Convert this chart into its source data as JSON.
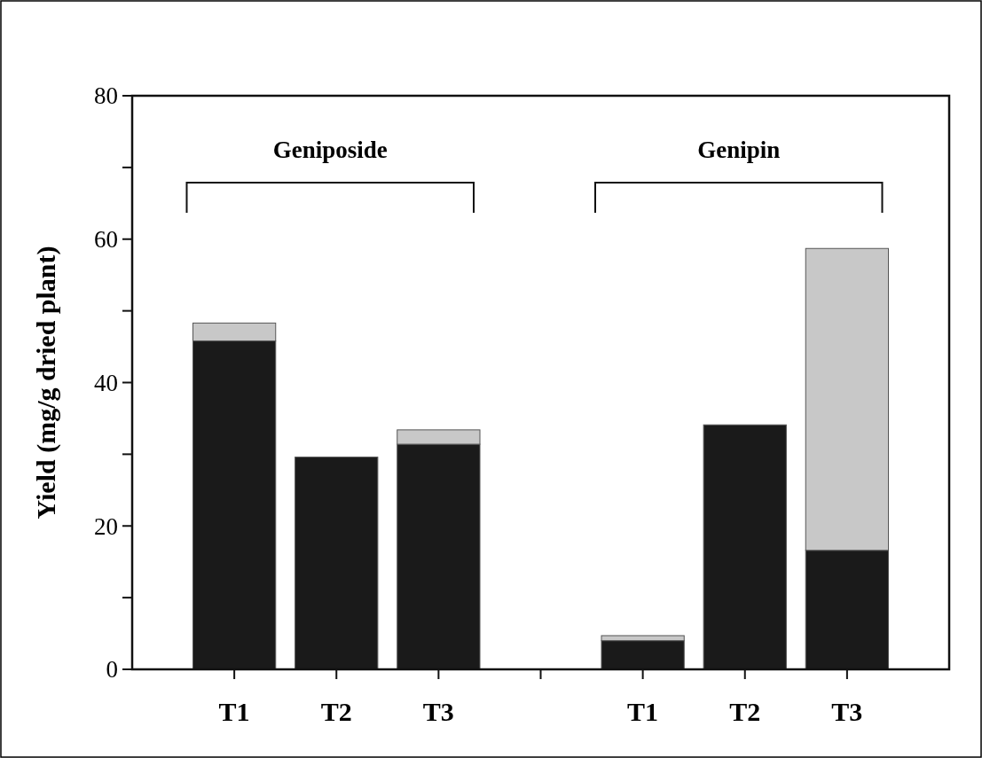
{
  "chart_data": {
    "type": "bar",
    "stacked": true,
    "ylabel": "Yield (mg/g dried plant)",
    "categories": [
      "T1",
      "T2",
      "T3",
      null,
      "T1",
      "T2",
      "T3"
    ],
    "series": [
      {
        "color": "#1a1a1a",
        "values": [
          45.8,
          29.6,
          31.4,
          null,
          4.0,
          34.1,
          16.6
        ]
      },
      {
        "color": "#c8c8c8",
        "values": [
          2.5,
          0,
          2.0,
          null,
          0.7,
          0,
          42.1
        ]
      }
    ],
    "ylim": [
      0,
      80
    ],
    "yticks": [
      0,
      {
        "value": 10,
        "label": null
      },
      20,
      {
        "value": 30,
        "label": null
      },
      40,
      {
        "value": 50,
        "label": null
      },
      60,
      {
        "value": 70,
        "label": null
      },
      80
    ],
    "annotations": [
      "Geniposide",
      "Genipin"
    ]
  }
}
